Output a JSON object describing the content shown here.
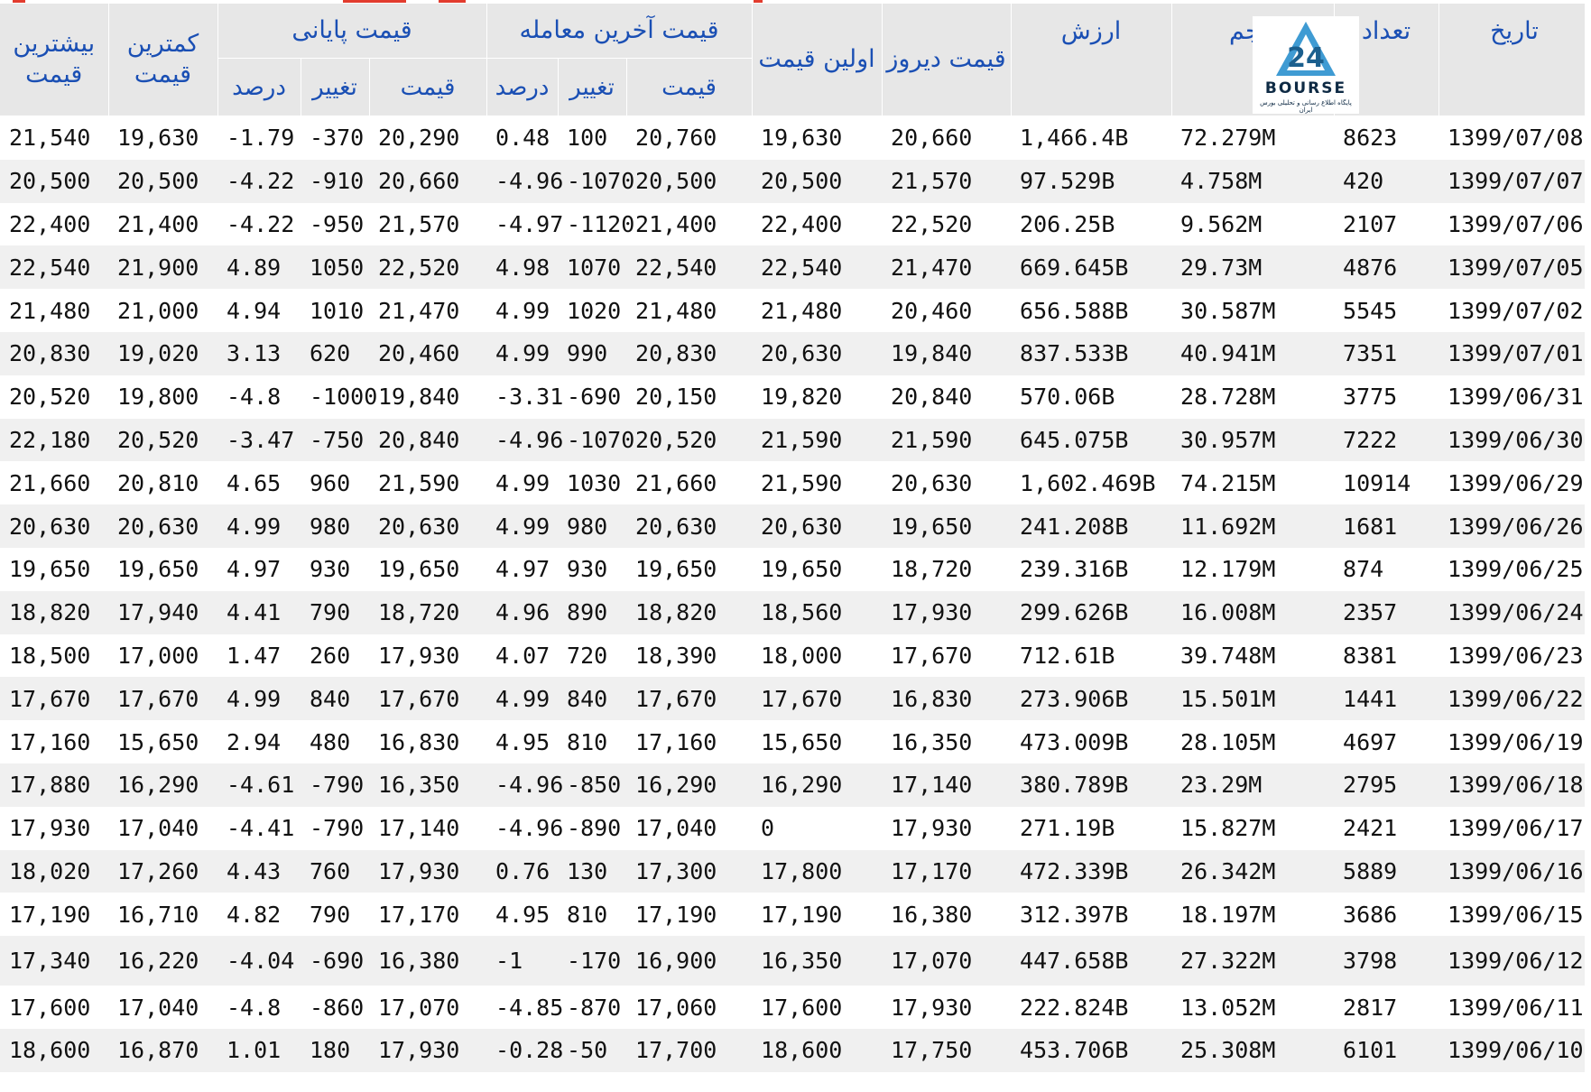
{
  "header": {
    "max_price": "بیشترین قیمت",
    "min_price": "کمترین قیمت",
    "closing_price": "قیمت پایانی",
    "last_trade": "قیمت آخرین معامله",
    "first_price": "اولین قیمت",
    "yesterday_price": "قیمت دیروز",
    "value": "ارزش",
    "volume": "حجم",
    "count": "تعداد",
    "date": "تاریخ",
    "sub_percent": "درصد",
    "sub_change": "تغییر",
    "sub_price": "قیمت"
  },
  "logo": {
    "brand": "BOURSE",
    "tagline": "پایگاه اطلاع رسانی و تحلیلی بورس ایران",
    "icon": "bourse-24-logo-icon"
  },
  "colors": {
    "positive": "#1c8a1c",
    "negative": "#e51a1a",
    "header_text": "#1a4fb4",
    "header_bg": "#e7e7e7"
  },
  "rows": [
    {
      "max": "21,540",
      "min": "19,630",
      "cp_pct": "-1.79",
      "cp_chg": "-370",
      "cp": "20,290",
      "lt_pct": "0.48",
      "lt_chg": "100",
      "lt": "20,760",
      "first": "19,630",
      "yest": "20,660",
      "value": "1,466.4B",
      "volume": "72.279M",
      "count": "8623",
      "date": "1399/07/08"
    },
    {
      "max": "20,500",
      "min": "20,500",
      "cp_pct": "-4.22",
      "cp_chg": "-910",
      "cp": "20,660",
      "lt_pct": "-4.96",
      "lt_chg": "-1070",
      "lt": "20,500",
      "first": "20,500",
      "yest": "21,570",
      "value": "97.529B",
      "volume": "4.758M",
      "count": "420",
      "date": "1399/07/07"
    },
    {
      "max": "22,400",
      "min": "21,400",
      "cp_pct": "-4.22",
      "cp_chg": "-950",
      "cp": "21,570",
      "lt_pct": "-4.97",
      "lt_chg": "-1120",
      "lt": "21,400",
      "first": "22,400",
      "yest": "22,520",
      "value": "206.25B",
      "volume": "9.562M",
      "count": "2107",
      "date": "1399/07/06"
    },
    {
      "max": "22,540",
      "min": "21,900",
      "cp_pct": "4.89",
      "cp_chg": "1050",
      "cp": "22,520",
      "lt_pct": "4.98",
      "lt_chg": "1070",
      "lt": "22,540",
      "first": "22,540",
      "yest": "21,470",
      "value": "669.645B",
      "volume": "29.73M",
      "count": "4876",
      "date": "1399/07/05"
    },
    {
      "max": "21,480",
      "min": "21,000",
      "cp_pct": "4.94",
      "cp_chg": "1010",
      "cp": "21,470",
      "lt_pct": "4.99",
      "lt_chg": "1020",
      "lt": "21,480",
      "first": "21,480",
      "yest": "20,460",
      "value": "656.588B",
      "volume": "30.587M",
      "count": "5545",
      "date": "1399/07/02"
    },
    {
      "max": "20,830",
      "min": "19,020",
      "cp_pct": "3.13",
      "cp_chg": "620",
      "cp": "20,460",
      "lt_pct": "4.99",
      "lt_chg": "990",
      "lt": "20,830",
      "first": "20,630",
      "yest": "19,840",
      "value": "837.533B",
      "volume": "40.941M",
      "count": "7351",
      "date": "1399/07/01"
    },
    {
      "max": "20,520",
      "min": "19,800",
      "cp_pct": "-4.8",
      "cp_chg": "-1000",
      "cp": "19,840",
      "lt_pct": "-3.31",
      "lt_chg": "-690",
      "lt": "20,150",
      "first": "19,820",
      "yest": "20,840",
      "value": "570.06B",
      "volume": "28.728M",
      "count": "3775",
      "date": "1399/06/31"
    },
    {
      "max": "22,180",
      "min": "20,520",
      "cp_pct": "-3.47",
      "cp_chg": "-750",
      "cp": "20,840",
      "lt_pct": "-4.96",
      "lt_chg": "-1070",
      "lt": "20,520",
      "first": "21,590",
      "yest": "21,590",
      "value": "645.075B",
      "volume": "30.957M",
      "count": "7222",
      "date": "1399/06/30"
    },
    {
      "max": "21,660",
      "min": "20,810",
      "cp_pct": "4.65",
      "cp_chg": "960",
      "cp": "21,590",
      "lt_pct": "4.99",
      "lt_chg": "1030",
      "lt": "21,660",
      "first": "21,590",
      "yest": "20,630",
      "value": "1,602.469B",
      "volume": "74.215M",
      "count": "10914",
      "date": "1399/06/29"
    },
    {
      "max": "20,630",
      "min": "20,630",
      "cp_pct": "4.99",
      "cp_chg": "980",
      "cp": "20,630",
      "lt_pct": "4.99",
      "lt_chg": "980",
      "lt": "20,630",
      "first": "20,630",
      "yest": "19,650",
      "value": "241.208B",
      "volume": "11.692M",
      "count": "1681",
      "date": "1399/06/26"
    },
    {
      "max": "19,650",
      "min": "19,650",
      "cp_pct": "4.97",
      "cp_chg": "930",
      "cp": "19,650",
      "lt_pct": "4.97",
      "lt_chg": "930",
      "lt": "19,650",
      "first": "19,650",
      "yest": "18,720",
      "value": "239.316B",
      "volume": "12.179M",
      "count": "874",
      "date": "1399/06/25"
    },
    {
      "max": "18,820",
      "min": "17,940",
      "cp_pct": "4.41",
      "cp_chg": "790",
      "cp": "18,720",
      "lt_pct": "4.96",
      "lt_chg": "890",
      "lt": "18,820",
      "first": "18,560",
      "yest": "17,930",
      "value": "299.626B",
      "volume": "16.008M",
      "count": "2357",
      "date": "1399/06/24"
    },
    {
      "max": "18,500",
      "min": "17,000",
      "cp_pct": "1.47",
      "cp_chg": "260",
      "cp": "17,930",
      "lt_pct": "4.07",
      "lt_chg": "720",
      "lt": "18,390",
      "first": "18,000",
      "yest": "17,670",
      "value": "712.61B",
      "volume": "39.748M",
      "count": "8381",
      "date": "1399/06/23"
    },
    {
      "max": "17,670",
      "min": "17,670",
      "cp_pct": "4.99",
      "cp_chg": "840",
      "cp": "17,670",
      "lt_pct": "4.99",
      "lt_chg": "840",
      "lt": "17,670",
      "first": "17,670",
      "yest": "16,830",
      "value": "273.906B",
      "volume": "15.501M",
      "count": "1441",
      "date": "1399/06/22"
    },
    {
      "max": "17,160",
      "min": "15,650",
      "cp_pct": "2.94",
      "cp_chg": "480",
      "cp": "16,830",
      "lt_pct": "4.95",
      "lt_chg": "810",
      "lt": "17,160",
      "first": "15,650",
      "yest": "16,350",
      "value": "473.009B",
      "volume": "28.105M",
      "count": "4697",
      "date": "1399/06/19"
    },
    {
      "max": "17,880",
      "min": "16,290",
      "cp_pct": "-4.61",
      "cp_chg": "-790",
      "cp": "16,350",
      "lt_pct": "-4.96",
      "lt_chg": "-850",
      "lt": "16,290",
      "first": "16,290",
      "yest": "17,140",
      "value": "380.789B",
      "volume": "23.29M",
      "count": "2795",
      "date": "1399/06/18"
    },
    {
      "max": "17,930",
      "min": "17,040",
      "cp_pct": "-4.41",
      "cp_chg": "-790",
      "cp": "17,140",
      "lt_pct": "-4.96",
      "lt_chg": "-890",
      "lt": "17,040",
      "first": "0",
      "yest": "17,930",
      "value": "271.19B",
      "volume": "15.827M",
      "count": "2421",
      "date": "1399/06/17"
    },
    {
      "max": "18,020",
      "min": "17,260",
      "cp_pct": "4.43",
      "cp_chg": "760",
      "cp": "17,930",
      "lt_pct": "0.76",
      "lt_chg": "130",
      "lt": "17,300",
      "first": "17,800",
      "yest": "17,170",
      "value": "472.339B",
      "volume": "26.342M",
      "count": "5889",
      "date": "1399/06/16"
    },
    {
      "max": "17,190",
      "min": "16,710",
      "cp_pct": "4.82",
      "cp_chg": "790",
      "cp": "17,170",
      "lt_pct": "4.95",
      "lt_chg": "810",
      "lt": "17,190",
      "first": "17,190",
      "yest": "16,380",
      "value": "312.397B",
      "volume": "18.197M",
      "count": "3686",
      "date": "1399/06/15"
    },
    {
      "max": "17,340",
      "min": "16,220",
      "cp_pct": "-4.04",
      "cp_chg": "-690",
      "cp": "16,380",
      "lt_pct": "-1",
      "lt_chg": "-170",
      "lt": "16,900",
      "first": "16,350",
      "yest": "17,070",
      "value": "447.658B",
      "volume": "27.322M",
      "count": "3798",
      "date": "1399/06/12"
    },
    {
      "max": "17,600",
      "min": "17,040",
      "cp_pct": "-4.8",
      "cp_chg": "-860",
      "cp": "17,070",
      "lt_pct": "-4.85",
      "lt_chg": "-870",
      "lt": "17,060",
      "first": "17,600",
      "yest": "17,930",
      "value": "222.824B",
      "volume": "13.052M",
      "count": "2817",
      "date": "1399/06/11"
    },
    {
      "max": "18,600",
      "min": "16,870",
      "cp_pct": "1.01",
      "cp_chg": "180",
      "cp": "17,930",
      "lt_pct": "-0.28",
      "lt_chg": "-50",
      "lt": "17,700",
      "first": "18,600",
      "yest": "17,750",
      "value": "453.706B",
      "volume": "25.308M",
      "count": "6101",
      "date": "1399/06/10"
    }
  ]
}
